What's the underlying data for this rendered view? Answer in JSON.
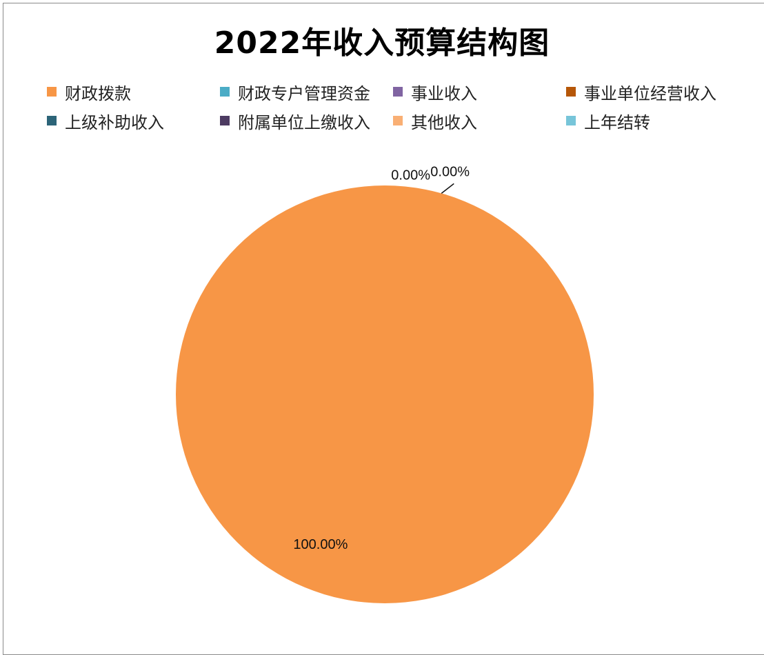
{
  "chart_data": {
    "type": "pie",
    "title": "2022年收入预算结构图",
    "legend_position": "top",
    "series": [
      {
        "name": "财政拨款",
        "value": 100.0,
        "label": "100.00%",
        "color": "#F79646"
      },
      {
        "name": "财政专户管理资金",
        "value": 0.0,
        "label": "0.00%",
        "color": "#4BACC6"
      },
      {
        "name": "事业收入",
        "value": 0.0,
        "label": "",
        "color": "#8064A2"
      },
      {
        "name": "事业单位经营收入",
        "value": 0.0,
        "label": "",
        "color": "#B65708"
      },
      {
        "name": "上级补助收入",
        "value": 0.0,
        "label": "",
        "color": "#2C6478"
      },
      {
        "name": "附属单位上缴收入",
        "value": 0.0,
        "label": "",
        "color": "#4D3B62"
      },
      {
        "name": "其他收入",
        "value": 0.0,
        "label": "",
        "color": "#F9AF74"
      },
      {
        "name": "上年结转",
        "value": 0.0,
        "label": "0.00%",
        "color": "#77C5D9"
      }
    ]
  }
}
